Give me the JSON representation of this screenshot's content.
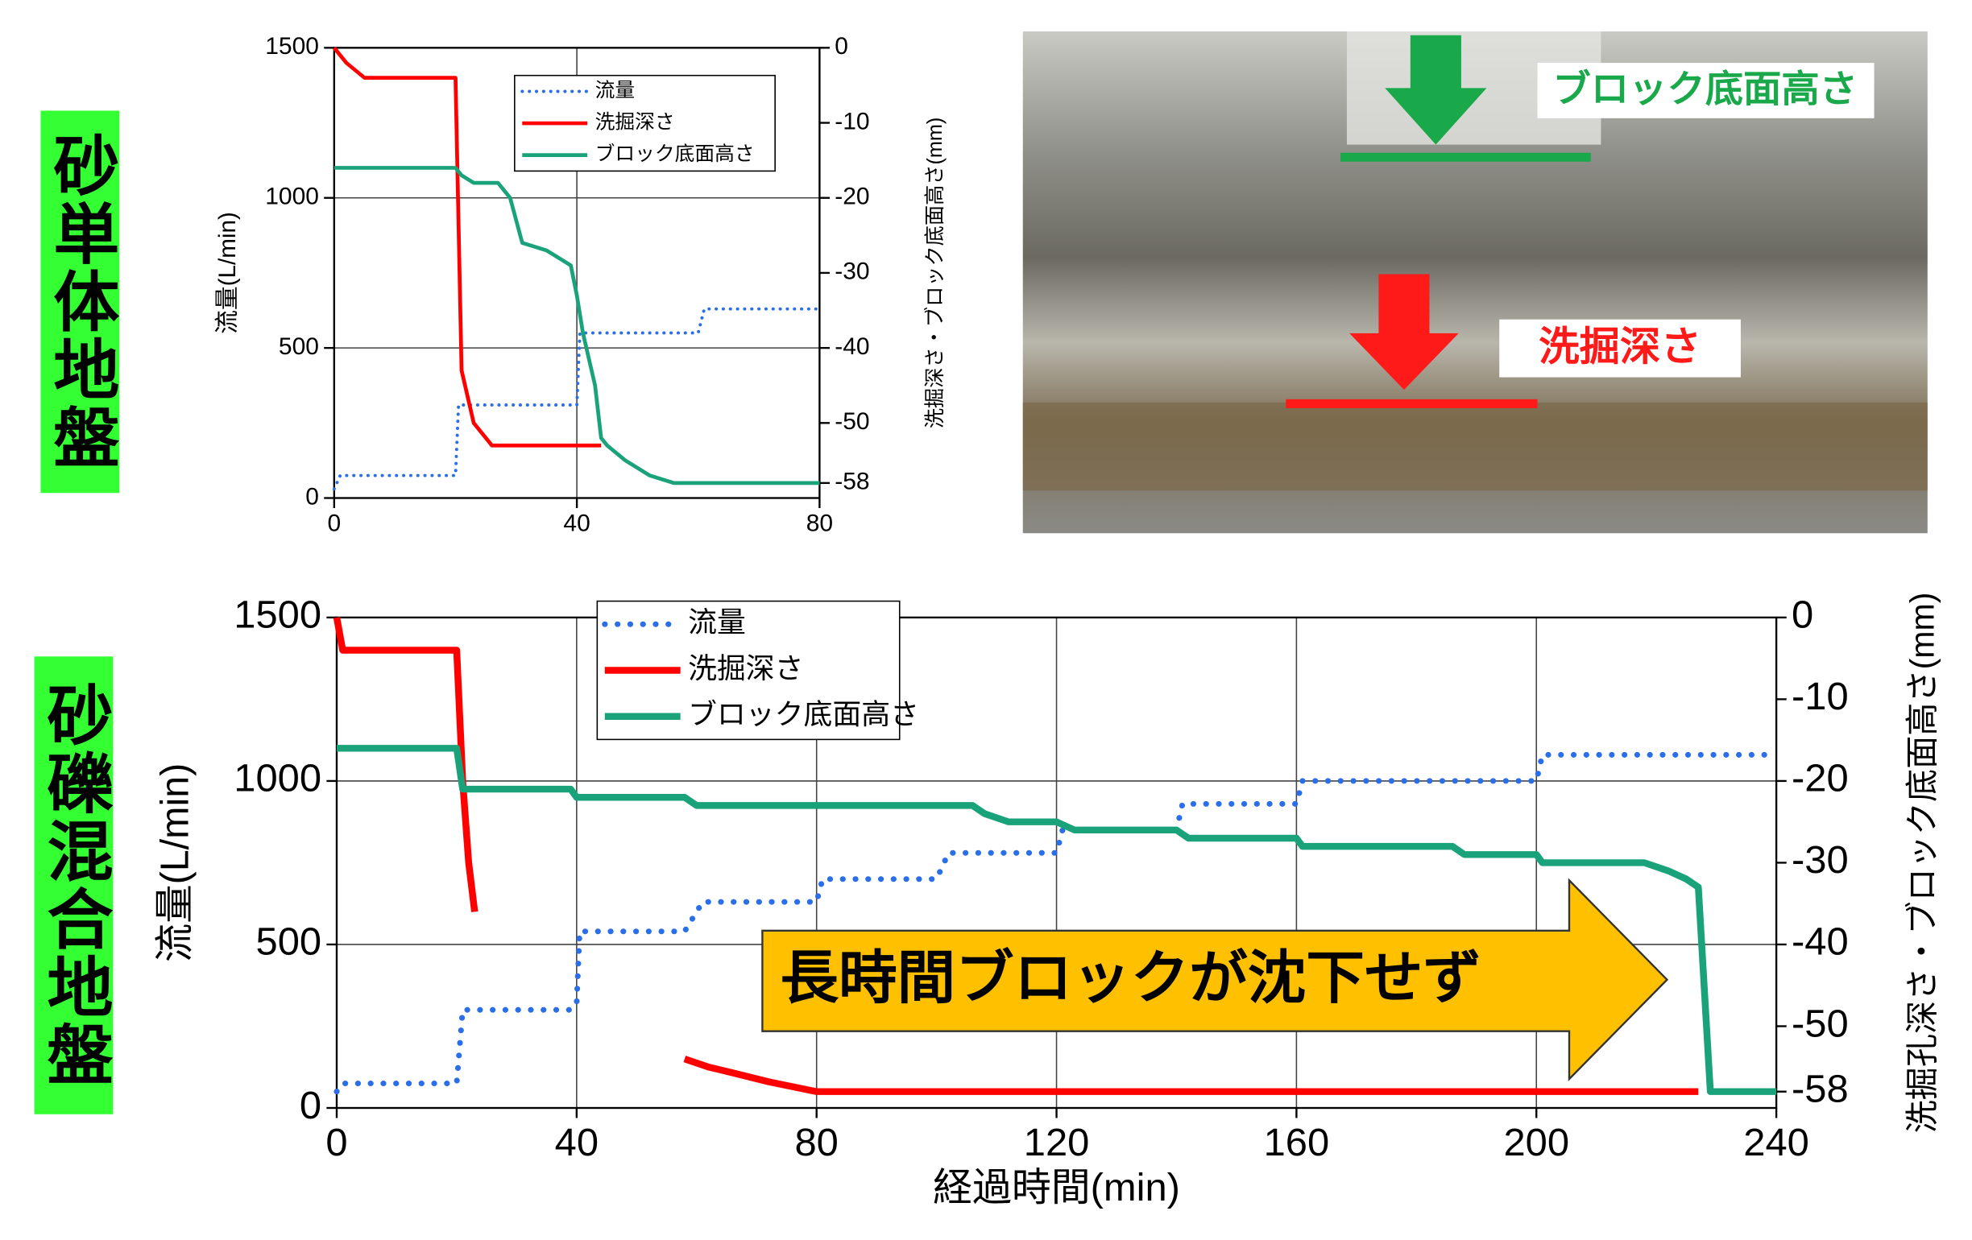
{
  "panel_labels": [
    "砂単体地盤",
    "砂礫混合地盤"
  ],
  "photo": {
    "labels": [
      "ブロック底面高さ",
      "洗掘深さ"
    ]
  },
  "chart_data": [
    {
      "type": "line",
      "ylabel": "流量(L/min)",
      "y2label": "洗掘深さ・ブロック底面高さ(mm)",
      "xlim": [
        0,
        80
      ],
      "xticks": [
        0,
        40,
        80
      ],
      "ylim": [
        0,
        1500
      ],
      "yticks": [
        0,
        500,
        1000,
        1500
      ],
      "y2lim": [
        -60,
        0
      ],
      "y2ticks": [
        0,
        -10,
        -20,
        -30,
        -40,
        -50,
        -58
      ],
      "grid": true,
      "series": [
        {
          "name": "流量",
          "color": "#2a6fe8",
          "style": "dotted",
          "x": [
            0,
            1,
            20,
            20.5,
            40,
            40.5,
            60,
            61,
            80
          ],
          "values": [
            30,
            75,
            75,
            310,
            310,
            550,
            550,
            630,
            630
          ]
        },
        {
          "name": "洗掘深さ",
          "color": "#ff0000",
          "style": "solid",
          "axis": "y2",
          "x": [
            0,
            2,
            5,
            20,
            21,
            23,
            26,
            44
          ],
          "values": [
            0,
            -2,
            -4,
            -4,
            -43,
            -50,
            -53,
            -53
          ]
        },
        {
          "name": "ブロック底面高さ",
          "color": "#1aa37a",
          "style": "solid",
          "axis": "y2",
          "x": [
            0,
            20,
            21,
            23,
            27,
            29,
            31,
            35,
            37,
            39,
            40,
            41,
            43,
            44,
            45,
            48,
            52,
            56,
            80
          ],
          "values": [
            -16,
            -16,
            -17,
            -18,
            -18,
            -20,
            -26,
            -27,
            -28,
            -29,
            -33,
            -38,
            -45,
            -52,
            -53,
            -55,
            -57,
            -58,
            -58
          ]
        }
      ]
    },
    {
      "type": "line",
      "xlabel": "経過時間(min)",
      "ylabel": "流量(L/min)",
      "y2label": "洗掘孔深さ・ブロック底面高さ(mm)",
      "xlim": [
        0,
        240
      ],
      "xticks": [
        0,
        40,
        80,
        120,
        160,
        200,
        240
      ],
      "ylim": [
        0,
        1500
      ],
      "yticks": [
        0,
        500,
        1000,
        1500
      ],
      "y2lim": [
        -60,
        0
      ],
      "y2ticks": [
        0,
        -10,
        -20,
        -30,
        -40,
        -50,
        -58
      ],
      "grid": true,
      "annotation": "長時間ブロックが沈下せず",
      "series": [
        {
          "name": "流量",
          "color": "#2a6fe8",
          "style": "dotted",
          "x": [
            0,
            1,
            20,
            21,
            39,
            40,
            40.5,
            58,
            61,
            80,
            81,
            100,
            102,
            120,
            121,
            140,
            141,
            160,
            161,
            200,
            201,
            240
          ],
          "values": [
            50,
            75,
            75,
            300,
            300,
            320,
            540,
            540,
            630,
            630,
            700,
            700,
            780,
            780,
            850,
            850,
            930,
            930,
            1000,
            1000,
            1080,
            1080
          ]
        },
        {
          "name": "洗掘深さ",
          "color": "#ff0000",
          "style": "solid",
          "axis": "y2",
          "x": [
            0,
            1,
            20,
            21,
            22,
            23,
            null,
            58,
            62,
            66,
            72,
            80,
            227
          ],
          "values": [
            0,
            -4,
            -4,
            -20,
            -30,
            -36,
            null,
            -54,
            -55,
            -55.7,
            -56.8,
            -58,
            -58
          ]
        },
        {
          "name": "ブロック底面高さ",
          "color": "#1aa37a",
          "style": "solid",
          "axis": "y2",
          "x": [
            0,
            20,
            21,
            39,
            40,
            58,
            60,
            106,
            108,
            112,
            120,
            123,
            140,
            142,
            160,
            161,
            186,
            188,
            200,
            201,
            218,
            222,
            225,
            227,
            229,
            240
          ],
          "values": [
            -16,
            -16,
            -21,
            -21,
            -22,
            -22,
            -23,
            -23,
            -24,
            -25,
            -25,
            -26,
            -26,
            -27,
            -27,
            -28,
            -28,
            -29,
            -29,
            -30,
            -30,
            -31,
            -32,
            -33,
            -58,
            -58
          ]
        }
      ]
    }
  ]
}
